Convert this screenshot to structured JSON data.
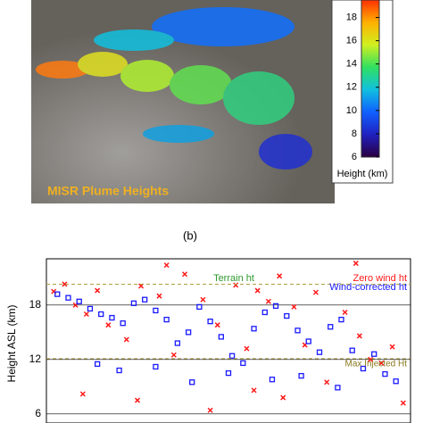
{
  "chart_data": [
    {
      "type": "colorbar",
      "annotation": "MISR Plume Heights",
      "ylabel": "Height (km)",
      "ylim": [
        6,
        19.5
      ],
      "yticks": [
        6,
        8,
        10,
        12,
        14,
        16,
        18
      ],
      "colors": [
        "#2a0040",
        "#2020c0",
        "#1060ff",
        "#10c0e0",
        "#30e060",
        "#d0f020",
        "#ffb000",
        "#ff3000"
      ]
    },
    {
      "type": "scatter",
      "panel_label": "(b)",
      "ylabel": "Height ASL (km)",
      "xlim": [
        0,
        100
      ],
      "ylim": [
        5,
        23.1
      ],
      "yticks": [
        6,
        12,
        18
      ],
      "grid": true,
      "annotations": [
        {
          "text": "Terrain ht",
          "color": "#2e9a2e"
        },
        {
          "text": "Max Injected Ht",
          "color": "#8a7a20"
        }
      ],
      "reference_lines": [
        {
          "value": 20.3,
          "color": "#b0a040"
        },
        {
          "value": 12.1,
          "color": "#b0a040"
        }
      ],
      "series": [
        {
          "name": "Zero wind ht",
          "color": "#ff1a1a",
          "x": [
            2,
            5,
            8,
            11,
            14,
            17,
            22,
            26,
            31,
            35,
            38,
            43,
            47,
            52,
            55,
            58,
            61,
            64,
            68,
            71,
            74,
            77,
            82,
            86,
            89,
            92,
            95,
            98,
            10,
            25,
            45,
            65,
            85,
            33,
            57
          ],
          "y": [
            19.5,
            20.3,
            18,
            17,
            19.6,
            15.8,
            14.2,
            20.1,
            19,
            12.5,
            21.4,
            18.6,
            15.8,
            20.2,
            13.2,
            19.6,
            18.4,
            21.2,
            17.8,
            13.6,
            19.4,
            9.5,
            17.2,
            14.6,
            12,
            11.6,
            13.4,
            7.2,
            8.2,
            7.5,
            6.4,
            7.8,
            22.6,
            22.4,
            8.6
          ]
        },
        {
          "name": "Wind-corrected ht",
          "color": "#1a1aff",
          "x": [
            3,
            6,
            9,
            12,
            15,
            18,
            21,
            24,
            27,
            30,
            33,
            36,
            39,
            42,
            45,
            48,
            51,
            54,
            57,
            60,
            63,
            66,
            69,
            72,
            75,
            78,
            81,
            84,
            87,
            90,
            93,
            96,
            14,
            20,
            30,
            40,
            50,
            62,
            70,
            80
          ],
          "y": [
            19.2,
            18.8,
            18.4,
            17.6,
            17,
            16.6,
            16,
            18.2,
            18.6,
            17.4,
            16.4,
            13.8,
            15,
            17.8,
            16.2,
            14.5,
            12.4,
            11.6,
            15.4,
            17.2,
            17.9,
            16.8,
            15.2,
            14,
            12.8,
            15.6,
            16.4,
            13,
            11,
            12.6,
            10.4,
            9.6,
            11.5,
            10.8,
            11.2,
            9.5,
            10.5,
            9.8,
            10.2,
            8.9
          ]
        }
      ]
    }
  ]
}
